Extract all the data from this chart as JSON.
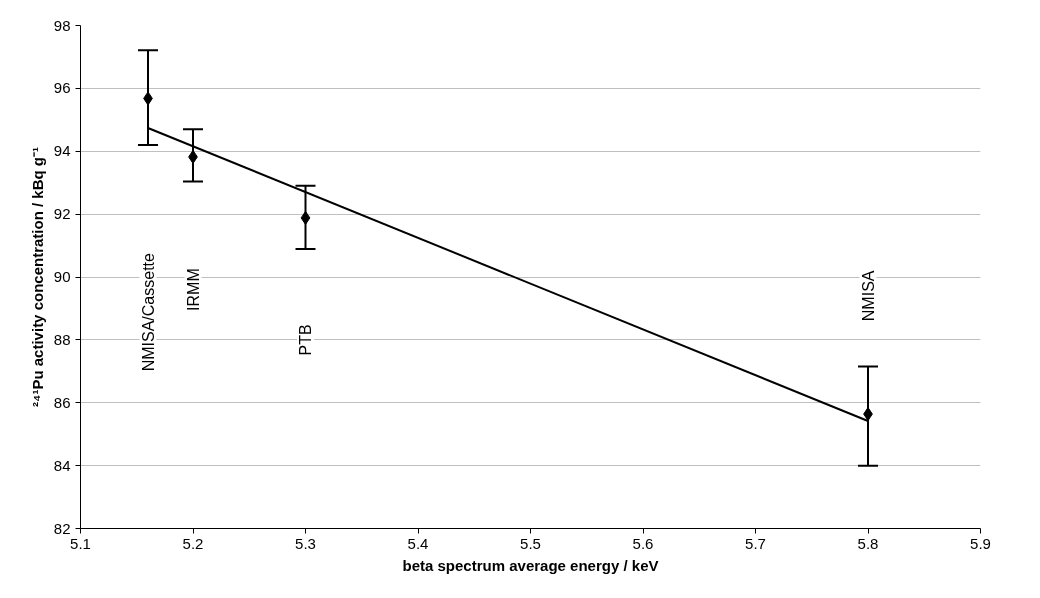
{
  "chart_data": {
    "type": "scatter",
    "xlabel": "beta spectrum average energy / keV",
    "ylabel": "²⁴¹Pu activity concentration / kBq g⁻¹",
    "xlim": [
      5.1,
      5.9
    ],
    "xticks": [
      5.1,
      5.2,
      5.3,
      5.4,
      5.5,
      5.6,
      5.7,
      5.8,
      5.9
    ],
    "ylim": [
      82,
      98
    ],
    "yticks": [
      82,
      84,
      86,
      88,
      90,
      92,
      94,
      96,
      98
    ],
    "grid": "y",
    "marker": "diamond",
    "series": [
      {
        "color": "#000000",
        "x": [
          5.16,
          5.2,
          5.3,
          5.8
        ],
        "values": [
          95.68,
          93.82,
          91.88,
          85.64
        ],
        "errors": [
          [
            94.2,
            97.21
          ],
          [
            93.04,
            94.7
          ],
          [
            90.89,
            92.9
          ],
          [
            84.0,
            87.15
          ]
        ]
      },
      {
        "type": "line",
        "color": "#000000",
        "marker": "none",
        "line_style": "solid",
        "x": [
          5.16,
          5.8
        ],
        "values": [
          94.74,
          85.42
        ]
      }
    ],
    "annotations": [
      "NMISA/Cassette",
      "IRMM",
      "PTB",
      "NMISA"
    ]
  }
}
